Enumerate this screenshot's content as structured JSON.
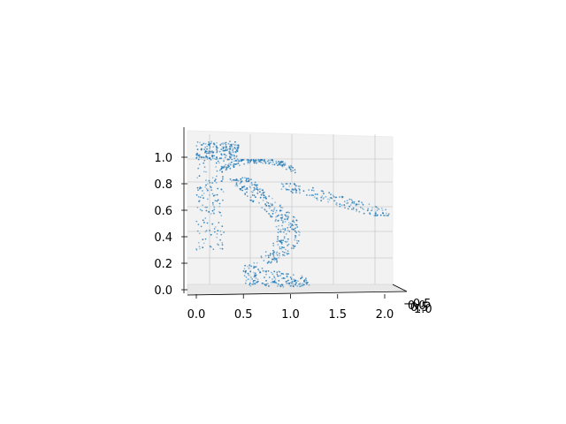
{
  "chart_data": {
    "type": "scatter",
    "projection": "3d",
    "title": "",
    "xlabel": "",
    "ylabel": "",
    "zlabel": "",
    "grid": true,
    "colors": {
      "points": "#1f77b4",
      "pane": "#f2f2f2",
      "grid": "#cccccc"
    },
    "x_ticks": [
      "0.0",
      "0.5",
      "1.0",
      "1.5",
      "2.0"
    ],
    "z_ticks": [
      "0.0",
      "0.2",
      "0.4",
      "0.6",
      "0.8",
      "1.0"
    ],
    "y_ticks": [
      "−0.5",
      "0.0",
      "0.5",
      "1.0"
    ],
    "xlim": [
      -0.1,
      2.15
    ],
    "zlim": [
      -0.02,
      1.15
    ],
    "point_regions": [
      {
        "name": "top-left cluster",
        "x": [
          0.0,
          0.45
        ],
        "z": [
          0.98,
          1.12
        ],
        "count": 190
      },
      {
        "name": "left vertical band",
        "x": [
          0.0,
          0.3
        ],
        "z": [
          0.3,
          1.0
        ],
        "count": 140
      },
      {
        "name": "upper arc",
        "x": [
          0.25,
          1.05
        ],
        "z": [
          0.82,
          0.98
        ],
        "count": 160
      },
      {
        "name": "right arm",
        "x": [
          0.9,
          2.05
        ],
        "z": [
          0.56,
          0.8
        ],
        "count": 160
      },
      {
        "name": "middle S band",
        "x": [
          0.35,
          1.1
        ],
        "z": [
          0.2,
          0.85
        ],
        "count": 320
      },
      {
        "name": "bottom cluster",
        "x": [
          0.5,
          1.2
        ],
        "z": [
          0.02,
          0.2
        ],
        "count": 170
      }
    ]
  }
}
